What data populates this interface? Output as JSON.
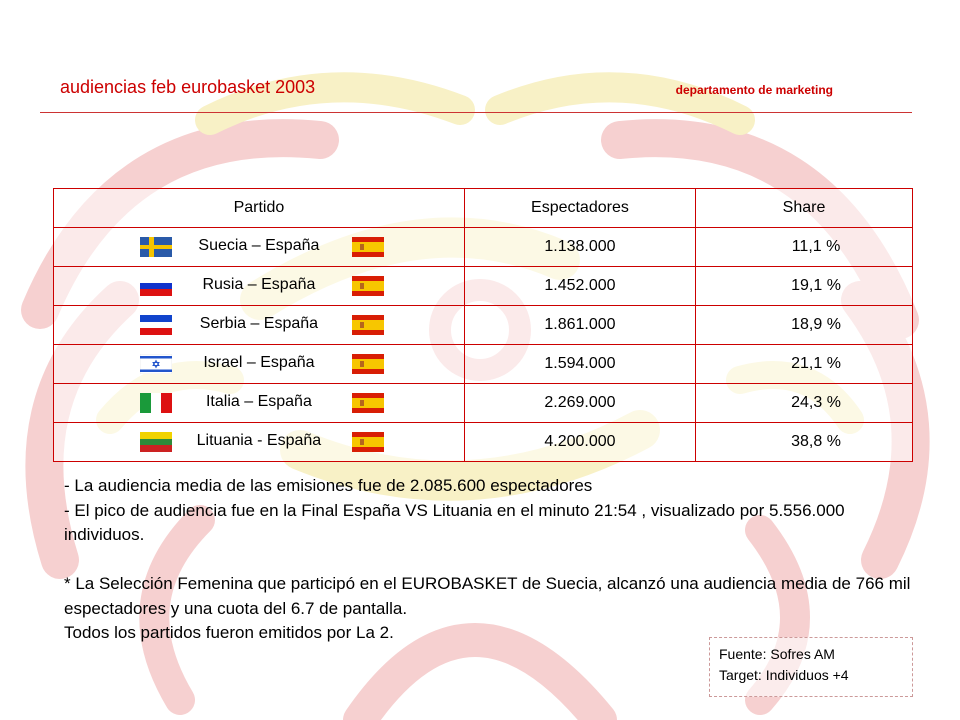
{
  "header": {
    "title": "audiencias feb eurobasket 2003",
    "department": "departamento de marketing"
  },
  "table": {
    "headers": [
      "Partido",
      "Espectadores",
      "Share"
    ],
    "rows": [
      {
        "match": "Suecia – España",
        "viewers": "1.138.000",
        "share": "11,1 %",
        "flag": "sweden-flag"
      },
      {
        "match": "Rusia – España",
        "viewers": "1.452.000",
        "share": "19,1 %",
        "flag": "russia-flag"
      },
      {
        "match": "Serbia – España",
        "viewers": "1.861.000",
        "share": "18,9 %",
        "flag": "serbia-flag"
      },
      {
        "match": "Israel – España",
        "viewers": "1.594.000",
        "share": "21,1 %",
        "flag": "israel-flag"
      },
      {
        "match": "Italia – España",
        "viewers": "2.269.000",
        "share": "24,3 %",
        "flag": "italy-flag"
      },
      {
        "match": "Lituania - España",
        "viewers": "4.200.000",
        "share": "38,8 %",
        "flag": "lithuania-flag"
      }
    ]
  },
  "notes": [
    "- La audiencia media de las emisiones fue de 2.085.600 espectadores",
    "- El pico de audiencia fue en la Final España VS Lituania en el minuto 21:54 , visualizado por  5.556.000 individuos.",
    "",
    "* La Selección Femenina que participó en el EUROBASKET de Suecia, alcanzó una audiencia  media de 766 mil espectadores y una cuota del 6.7 de pantalla.",
    "Todos los partidos fueron emitidos por La 2."
  ],
  "source": {
    "line1": "Fuente: Sofres AM",
    "line2": "Target: Individuos +4"
  },
  "colors": {
    "accent": "#cc0000",
    "background_pattern_red": "#f3c6c6",
    "background_pattern_yellow": "#faf3c4"
  }
}
